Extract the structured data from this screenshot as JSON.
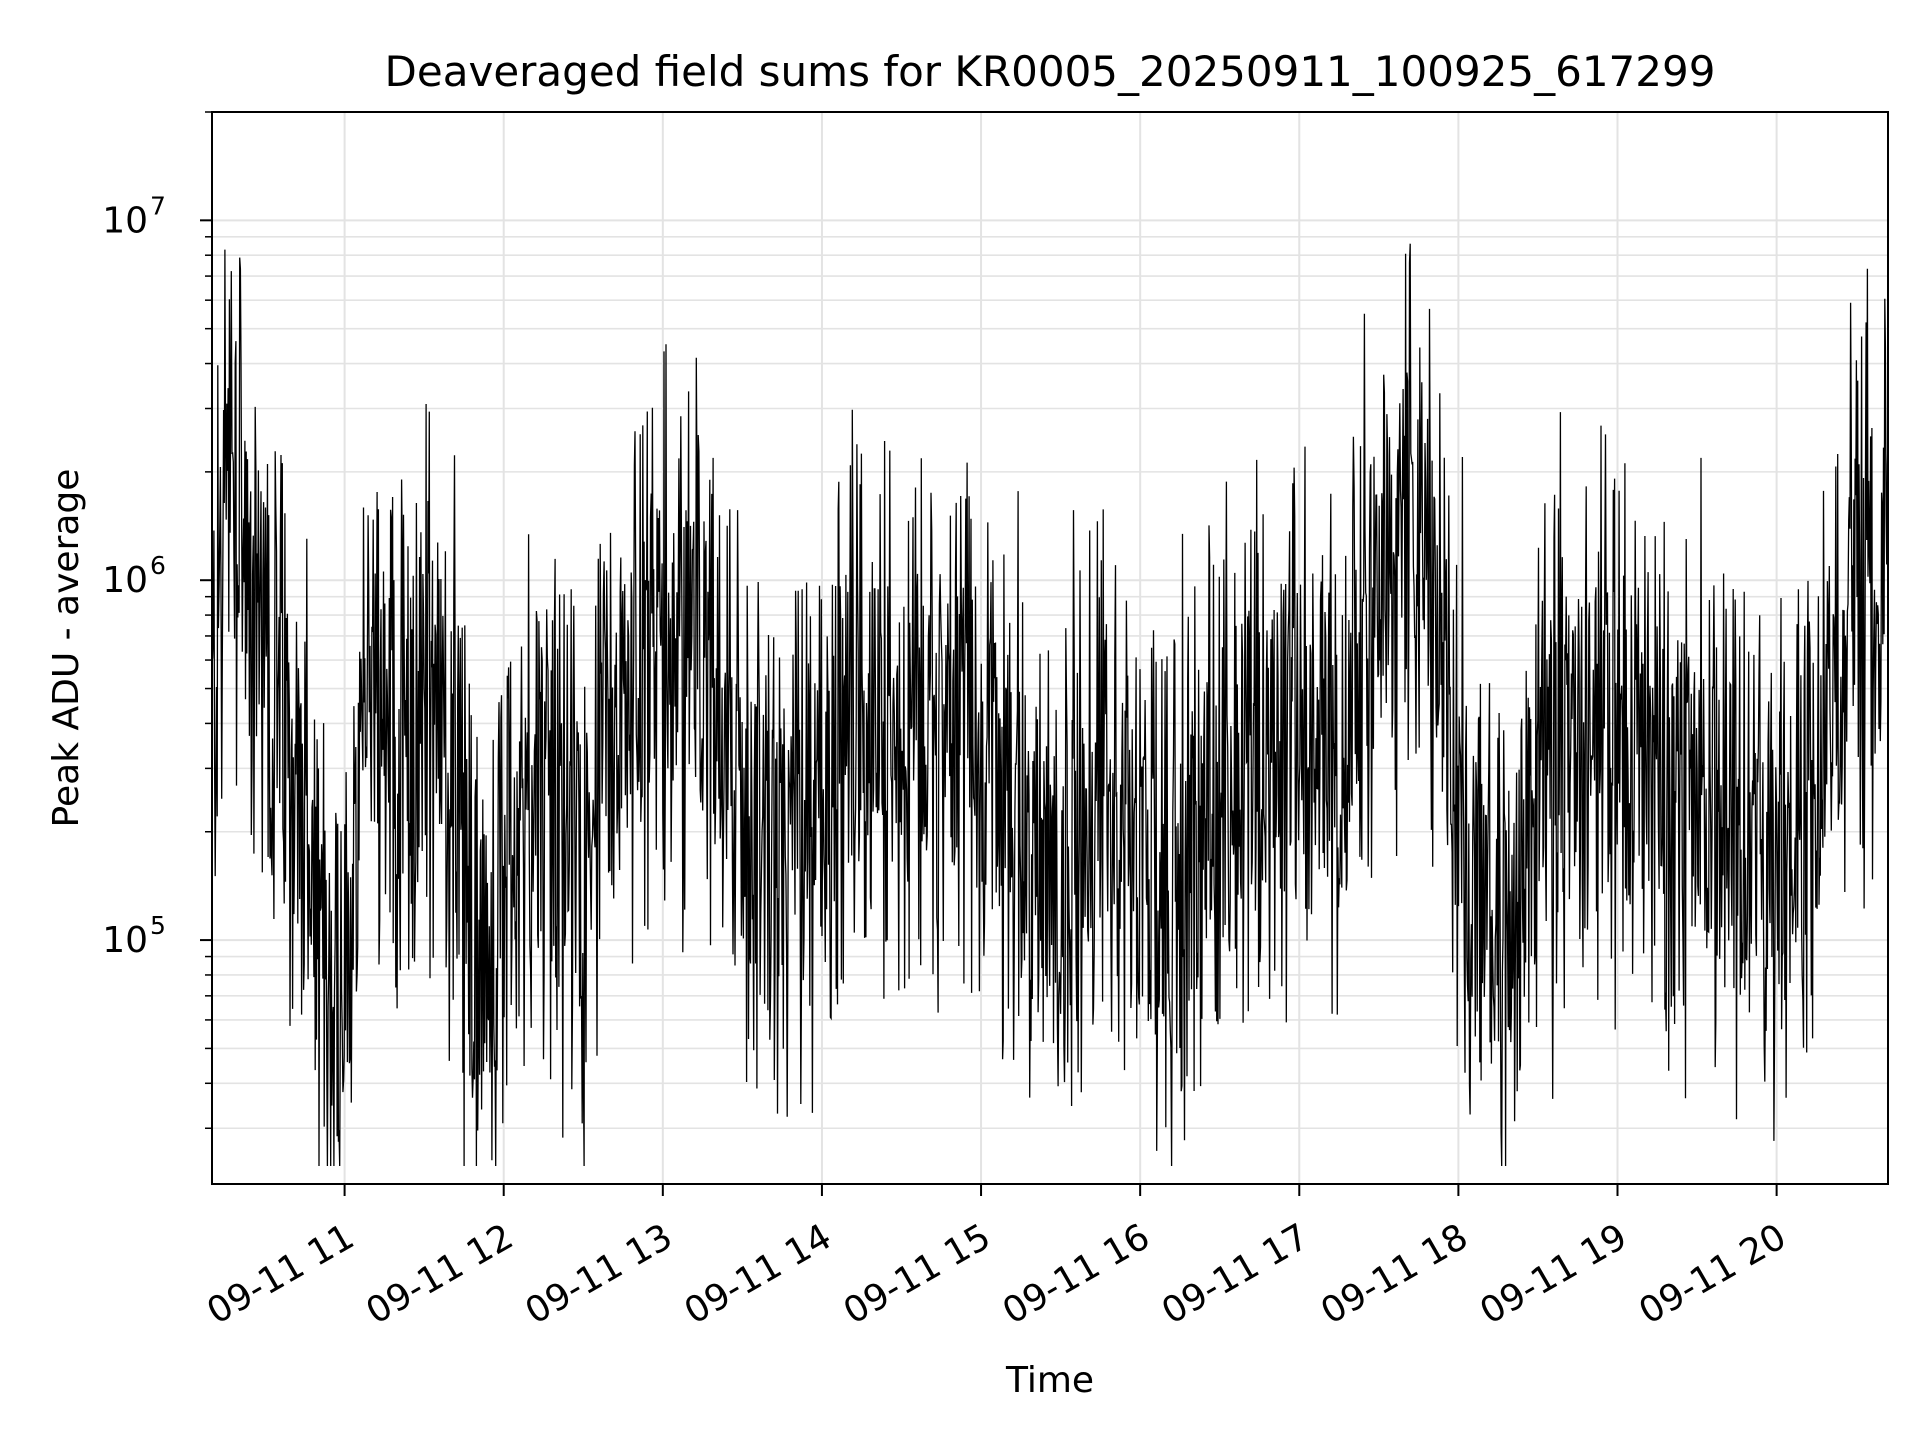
{
  "chart_data": {
    "type": "line",
    "title": "Deaveraged field sums for KR0005_20250911_100925_617299",
    "xlabel": "Time",
    "ylabel": "Peak ADU - average",
    "y_scale": "log",
    "ylim": [
      21000,
      20000000
    ],
    "xlim": [
      "2025-09-11 10:10",
      "2025-09-11 20:42"
    ],
    "x_ticks": [
      "09-11 11",
      "09-11 12",
      "09-11 13",
      "09-11 14",
      "09-11 15",
      "09-11 16",
      "09-11 17",
      "09-11 18",
      "09-11 19",
      "09-11 20"
    ],
    "x_tick_times": [
      "2025-09-11 11:00",
      "2025-09-11 12:00",
      "2025-09-11 13:00",
      "2025-09-11 14:00",
      "2025-09-11 15:00",
      "2025-09-11 16:00",
      "2025-09-11 17:00",
      "2025-09-11 18:00",
      "2025-09-11 19:00",
      "2025-09-11 20:00"
    ],
    "y_ticks": [
      {
        "value": 100000,
        "base": "10",
        "exp": "5"
      },
      {
        "value": 1000000,
        "base": "10",
        "exp": "6"
      },
      {
        "value": 10000000,
        "base": "10",
        "exp": "7"
      }
    ],
    "grid": true,
    "color": "#000000",
    "series": [
      {
        "x": [
          "2025-09-11 10:10",
          "2025-09-11 10:15",
          "2025-09-11 10:20",
          "2025-09-11 10:25",
          "2025-09-11 10:30",
          "2025-09-11 10:35",
          "2025-09-11 10:40",
          "2025-09-11 10:45",
          "2025-09-11 10:50",
          "2025-09-11 10:55",
          "2025-09-11 11:00",
          "2025-09-11 11:10",
          "2025-09-11 11:20",
          "2025-09-11 11:30",
          "2025-09-11 11:40",
          "2025-09-11 11:50",
          "2025-09-11 12:00",
          "2025-09-11 12:15",
          "2025-09-11 12:30",
          "2025-09-11 12:45",
          "2025-09-11 13:00",
          "2025-09-11 13:15",
          "2025-09-11 13:30",
          "2025-09-11 13:45",
          "2025-09-11 14:00",
          "2025-09-11 14:15",
          "2025-09-11 14:30",
          "2025-09-11 14:45",
          "2025-09-11 15:00",
          "2025-09-11 15:15",
          "2025-09-11 15:30",
          "2025-09-11 15:45",
          "2025-09-11 16:00",
          "2025-09-11 16:15",
          "2025-09-11 16:30",
          "2025-09-11 16:45",
          "2025-09-11 17:00",
          "2025-09-11 17:15",
          "2025-09-11 17:30",
          "2025-09-11 17:45",
          "2025-09-11 18:00",
          "2025-09-11 18:15",
          "2025-09-11 18:30",
          "2025-09-11 18:45",
          "2025-09-11 19:00",
          "2025-09-11 19:15",
          "2025-09-11 19:30",
          "2025-09-11 19:45",
          "2025-09-11 20:00",
          "2025-09-11 20:15",
          "2025-09-11 20:30",
          "2025-09-11 20:42"
        ],
        "y": [
          400000,
          1800000,
          1600000,
          700000,
          900000,
          500000,
          300000,
          150000,
          80000,
          65000,
          60000,
          600000,
          300000,
          600000,
          300000,
          70000,
          150000,
          250000,
          150000,
          400000,
          700000,
          600000,
          200000,
          150000,
          300000,
          500000,
          400000,
          450000,
          350000,
          200000,
          120000,
          350000,
          130000,
          140000,
          250000,
          350000,
          450000,
          300000,
          1000000,
          1800000,
          250000,
          80000,
          250000,
          350000,
          450000,
          300000,
          250000,
          200000,
          150000,
          300000,
          900000,
          1200000
        ]
      }
    ]
  }
}
